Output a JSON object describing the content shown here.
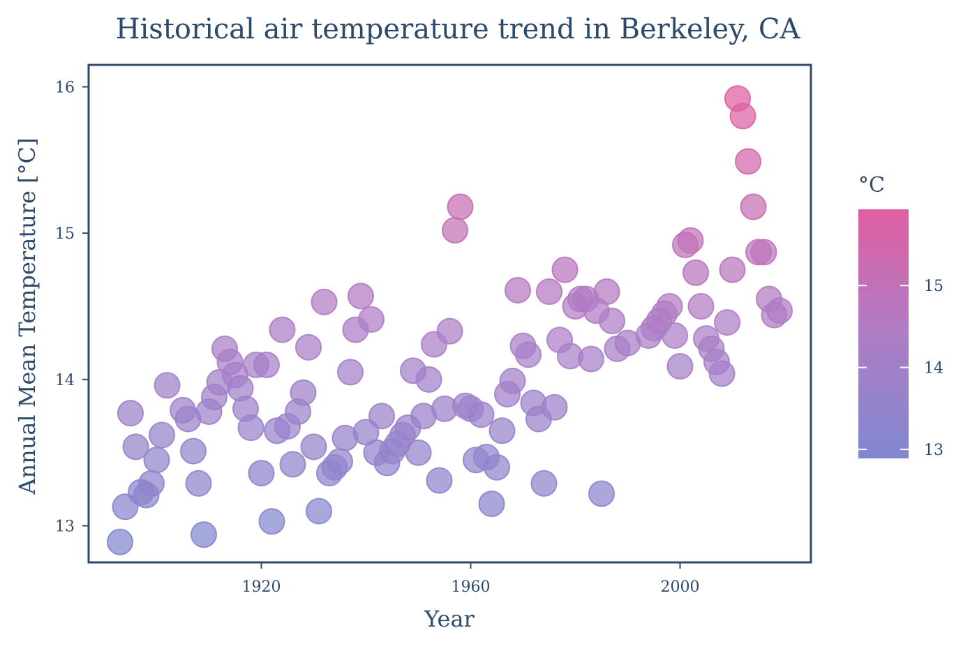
{
  "chart_data": {
    "type": "scatter",
    "title": "Historical air temperature trend in Berkeley, CA",
    "xlabel": "Year",
    "ylabel": "Annual Mean Temperature [°C]",
    "xlim": [
      1887,
      2025
    ],
    "ylim": [
      12.75,
      16.15
    ],
    "x_ticks": [
      1920,
      1960,
      2000
    ],
    "y_ticks": [
      13,
      14,
      15,
      16
    ],
    "grid": false,
    "colorbar": {
      "title": "°C",
      "ticks": [
        13,
        14,
        15
      ],
      "range": [
        12.89,
        15.93
      ],
      "low_color": "#8187cf",
      "mid_color": "#ae7dc6",
      "high_color": "#e05ea0",
      "placement": "right"
    },
    "x": [
      1893,
      1894,
      1895,
      1896,
      1897,
      1898,
      1899,
      1900,
      1901,
      1902,
      1905,
      1906,
      1907,
      1908,
      1909,
      1910,
      1911,
      1912,
      1913,
      1914,
      1915,
      1916,
      1917,
      1918,
      1919,
      1920,
      1921,
      1922,
      1923,
      1924,
      1925,
      1926,
      1927,
      1928,
      1929,
      1930,
      1931,
      1932,
      1933,
      1934,
      1935,
      1936,
      1937,
      1938,
      1939,
      1940,
      1941,
      1942,
      1943,
      1944,
      1945,
      1946,
      1947,
      1948,
      1949,
      1950,
      1951,
      1952,
      1953,
      1954,
      1955,
      1956,
      1957,
      1958,
      1959,
      1960,
      1961,
      1962,
      1963,
      1964,
      1965,
      1966,
      1967,
      1968,
      1969,
      1970,
      1971,
      1972,
      1973,
      1974,
      1975,
      1976,
      1977,
      1978,
      1979,
      1980,
      1981,
      1982,
      1983,
      1984,
      1985,
      1986,
      1987,
      1988,
      1990,
      1994,
      1995,
      1996,
      1997,
      1998,
      1999,
      2000,
      2001,
      2002,
      2003,
      2004,
      2005,
      2006,
      2007,
      2008,
      2009,
      2010,
      2011,
      2012,
      2013,
      2014,
      2015,
      2016,
      2017,
      2018,
      2019
    ],
    "y": [
      12.89,
      13.13,
      13.77,
      13.54,
      13.23,
      13.21,
      13.29,
      13.45,
      13.62,
      13.96,
      13.79,
      13.73,
      13.51,
      13.29,
      12.94,
      13.78,
      13.88,
      13.98,
      14.21,
      14.12,
      14.03,
      13.94,
      13.8,
      13.67,
      14.1,
      13.36,
      14.1,
      13.03,
      13.65,
      14.34,
      13.68,
      13.42,
      13.78,
      13.91,
      14.22,
      13.54,
      13.1,
      14.53,
      13.36,
      13.4,
      13.44,
      13.6,
      14.05,
      14.34,
      14.57,
      13.64,
      14.41,
      13.5,
      13.75,
      13.43,
      13.51,
      13.56,
      13.62,
      13.67,
      14.06,
      13.5,
      13.75,
      14.0,
      14.24,
      13.31,
      13.8,
      14.33,
      15.02,
      15.18,
      13.82,
      13.8,
      13.45,
      13.76,
      13.47,
      13.15,
      13.4,
      13.65,
      13.9,
      13.99,
      14.61,
      14.23,
      14.17,
      13.84,
      13.73,
      13.29,
      14.6,
      13.81,
      14.27,
      14.75,
      14.16,
      14.5,
      14.55,
      14.55,
      14.14,
      14.47,
      13.22,
      14.6,
      14.4,
      14.21,
      14.25,
      14.3,
      14.35,
      14.4,
      14.45,
      14.5,
      14.3,
      14.09,
      14.92,
      14.95,
      14.73,
      14.5,
      14.28,
      14.21,
      14.12,
      14.04,
      14.39,
      14.75,
      15.92,
      15.8,
      15.49,
      15.18,
      14.87,
      14.87,
      14.55,
      14.44,
      14.47
    ]
  }
}
